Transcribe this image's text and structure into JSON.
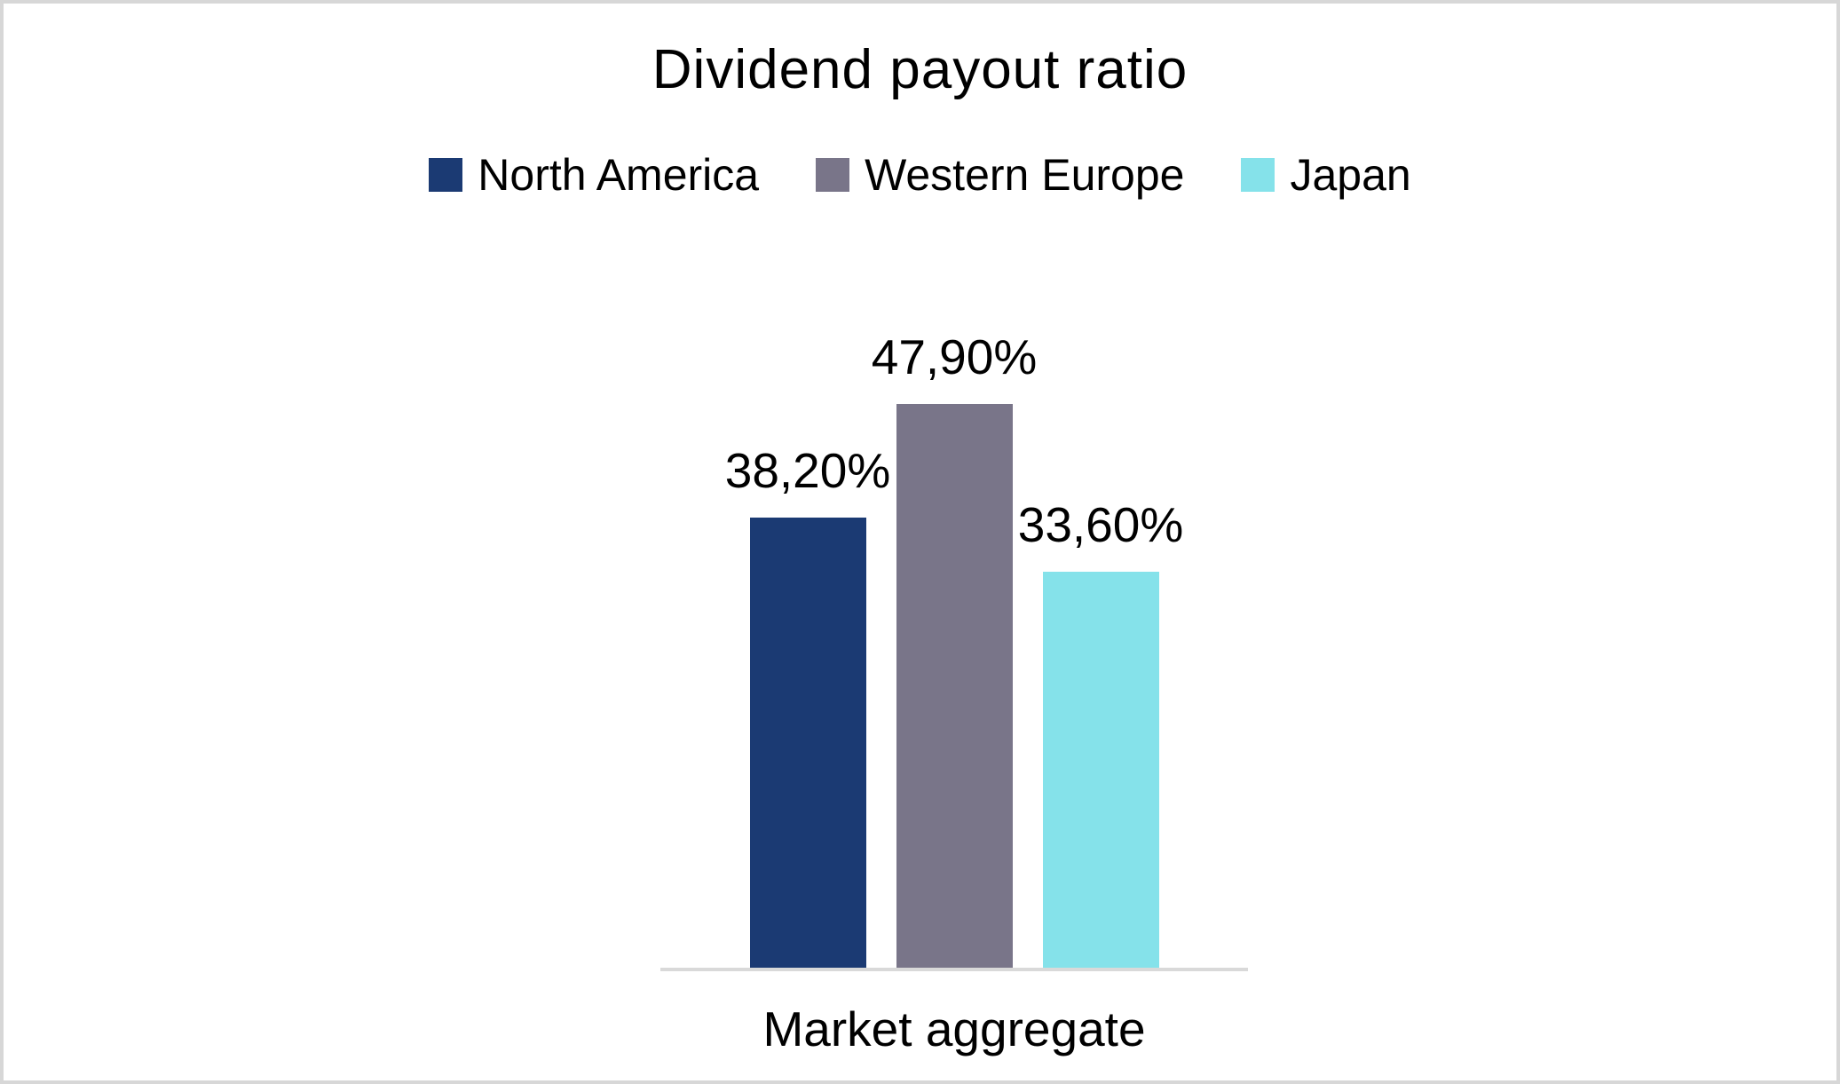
{
  "chart_data": {
    "type": "bar",
    "title": "Dividend payout ratio",
    "categories": [
      "Market aggregate"
    ],
    "series": [
      {
        "name": "North America",
        "value": 38.2,
        "label": "38,20%",
        "color": "#1B3A73"
      },
      {
        "name": "Western Europe",
        "value": 47.9,
        "label": "47,90%",
        "color": "#797589"
      },
      {
        "name": "Japan",
        "value": 33.6,
        "label": "33,60%",
        "color": "#85E2EA"
      }
    ],
    "xlabel": "Market aggregate",
    "ylabel": "",
    "ylim": [
      0,
      50
    ],
    "grid": false,
    "legend_position": "top",
    "axis_line_color": "#D9D9D9",
    "background_color": "#FFFFFF",
    "border_color": "#D7D7D7"
  }
}
